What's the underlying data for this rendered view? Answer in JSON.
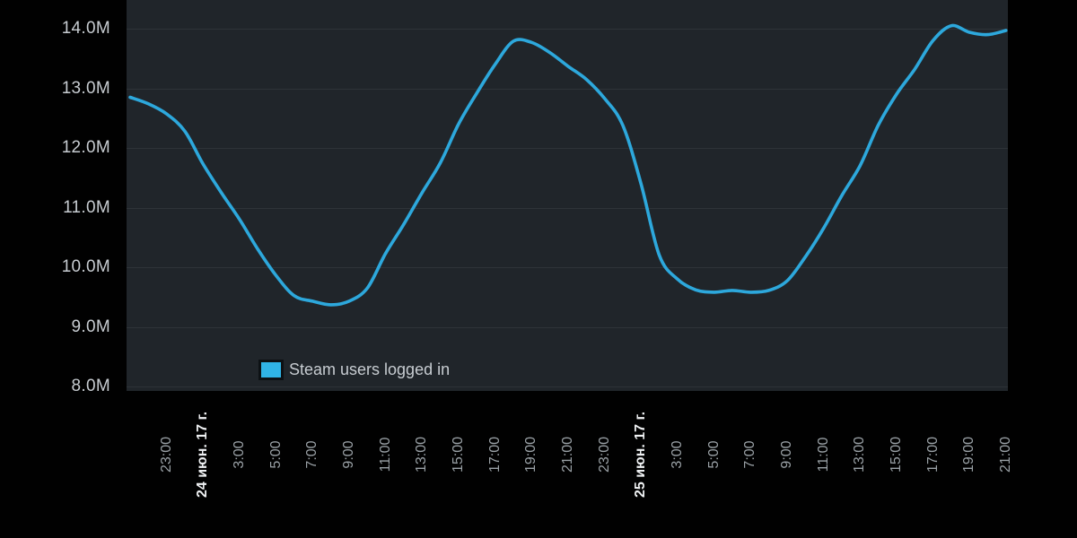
{
  "legend": {
    "label": "Steam users logged in",
    "swatch_color": "#30b4e6"
  },
  "colors": {
    "page_background": "#010101",
    "plot_background": "#20252a",
    "gridline": "#2e3338",
    "line": "#2da8dc",
    "y_label_text": "#c7ccd1",
    "x_label_text": "#9aa1a6",
    "x_date_label_text": "#eef0f2"
  },
  "chart_data": {
    "type": "line",
    "title": "",
    "xlabel": "",
    "ylabel": "",
    "grid": "horizontal",
    "legend_position": "bottom-left inside plot",
    "y_axis": {
      "unit": "millions of users",
      "ticks": [
        {
          "label": "14.0M",
          "value": 14
        },
        {
          "label": "13.0M",
          "value": 13
        },
        {
          "label": "12.0M",
          "value": 12
        },
        {
          "label": "11.0M",
          "value": 11
        },
        {
          "label": "10.0M",
          "value": 10
        },
        {
          "label": "9.0M",
          "value": 9
        },
        {
          "label": "8.0M",
          "value": 8
        }
      ],
      "visible_range_millions": [
        7.93,
        14.48
      ]
    },
    "x_axis": {
      "labels": [
        {
          "text": "23:00",
          "i": 2
        },
        {
          "text": "24 июн. 17 г.",
          "i": 4,
          "date": true
        },
        {
          "text": "3:00",
          "i": 6
        },
        {
          "text": "5:00",
          "i": 8
        },
        {
          "text": "7:00",
          "i": 10
        },
        {
          "text": "9:00",
          "i": 12
        },
        {
          "text": "11:00",
          "i": 14
        },
        {
          "text": "13:00",
          "i": 16
        },
        {
          "text": "15:00",
          "i": 18
        },
        {
          "text": "17:00",
          "i": 20
        },
        {
          "text": "19:00",
          "i": 22
        },
        {
          "text": "21:00",
          "i": 24
        },
        {
          "text": "23:00",
          "i": 26
        },
        {
          "text": "25 июн. 17 г.",
          "i": 28,
          "date": true
        },
        {
          "text": "3:00",
          "i": 30
        },
        {
          "text": "5:00",
          "i": 32
        },
        {
          "text": "7:00",
          "i": 34
        },
        {
          "text": "9:00",
          "i": 36
        },
        {
          "text": "11:00",
          "i": 38
        },
        {
          "text": "13:00",
          "i": 40
        },
        {
          "text": "15:00",
          "i": 42
        },
        {
          "text": "17:00",
          "i": 44
        },
        {
          "text": "19:00",
          "i": 46
        },
        {
          "text": "21:00",
          "i": 48
        }
      ]
    },
    "series": [
      {
        "name": "Steam users logged in",
        "color": "#2da8dc",
        "start_time": "23 июн. 17 г. 21:00",
        "interval_hours": 1,
        "values_millions": [
          12.85,
          12.74,
          12.57,
          12.28,
          11.73,
          11.25,
          10.8,
          10.3,
          9.86,
          9.52,
          9.43,
          9.37,
          9.43,
          9.65,
          10.23,
          10.72,
          11.25,
          11.75,
          12.4,
          12.92,
          13.4,
          13.79,
          13.77,
          13.6,
          13.37,
          13.15,
          12.83,
          12.38,
          11.4,
          10.2,
          9.8,
          9.62,
          9.58,
          9.61,
          9.58,
          9.61,
          9.77,
          10.17,
          10.65,
          11.2,
          11.7,
          12.38,
          12.9,
          13.32,
          13.8,
          14.05,
          13.94,
          13.9,
          13.97
        ]
      }
    ]
  }
}
